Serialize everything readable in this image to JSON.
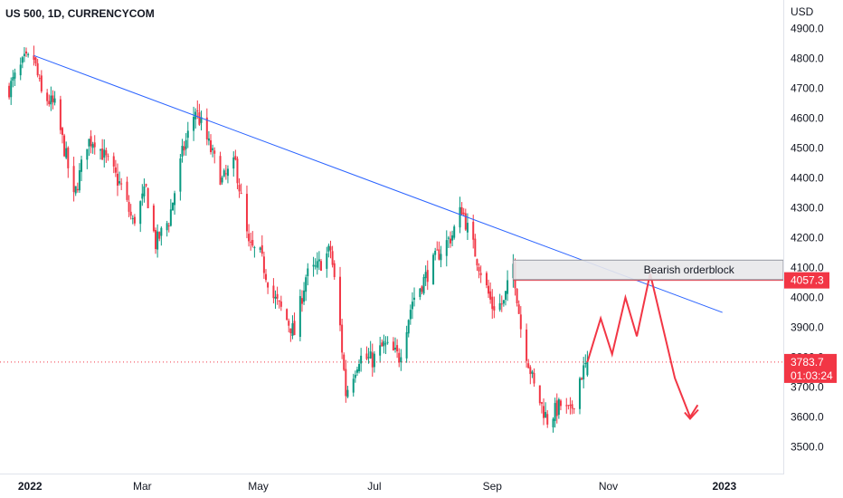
{
  "header": {
    "symbol_title": "US 500, 1D, CURRENCYCOM",
    "currency": "USD"
  },
  "chart_data": {
    "type": "candlestick",
    "title": "US 500, 1D, CURRENCYCOM",
    "y_axis_unit": "USD",
    "ylim": [
      3450,
      4920
    ],
    "y_ticks": [
      "3500.0",
      "3600.0",
      "3700.0",
      "3800.0",
      "3900.0",
      "4000.0",
      "4100.0",
      "4200.0",
      "4300.0",
      "4400.0",
      "4500.0",
      "4600.0",
      "4700.0",
      "4800.0",
      "4900.0"
    ],
    "x_ticks": [
      {
        "label": "2022",
        "bold": true,
        "date": "2022-01-01"
      },
      {
        "label": "Mar",
        "bold": false,
        "date": "2022-03-01"
      },
      {
        "label": "May",
        "bold": false,
        "date": "2022-05-01"
      },
      {
        "label": "Jul",
        "bold": false,
        "date": "2022-07-01"
      },
      {
        "label": "Sep",
        "bold": false,
        "date": "2022-09-01"
      },
      {
        "label": "Nov",
        "bold": false,
        "date": "2022-11-01"
      },
      {
        "label": "2023",
        "bold": true,
        "date": "2023-01-01"
      }
    ],
    "x_range": [
      "2021-12-20",
      "2023-02-01"
    ],
    "price_path": [
      [
        "2021-12-21",
        4700
      ],
      [
        "2021-12-29",
        4790
      ],
      [
        "2022-01-03",
        4800
      ],
      [
        "2022-01-07",
        4680
      ],
      [
        "2022-01-14",
        4640
      ],
      [
        "2022-01-20",
        4470
      ],
      [
        "2022-01-24",
        4330
      ],
      [
        "2022-01-31",
        4520
      ],
      [
        "2022-02-04",
        4530
      ],
      [
        "2022-02-10",
        4460
      ],
      [
        "2022-02-18",
        4370
      ],
      [
        "2022-02-24",
        4250
      ],
      [
        "2022-03-03",
        4360
      ],
      [
        "2022-03-08",
        4180
      ],
      [
        "2022-03-15",
        4260
      ],
      [
        "2022-03-22",
        4480
      ],
      [
        "2022-03-29",
        4630
      ],
      [
        "2022-04-05",
        4510
      ],
      [
        "2022-04-12",
        4390
      ],
      [
        "2022-04-19",
        4450
      ],
      [
        "2022-04-26",
        4170
      ],
      [
        "2022-05-02",
        4140
      ],
      [
        "2022-05-09",
        4000
      ],
      [
        "2022-05-13",
        3960
      ],
      [
        "2022-05-20",
        3880
      ],
      [
        "2022-05-26",
        4070
      ],
      [
        "2022-06-01",
        4100
      ],
      [
        "2022-06-08",
        4160
      ],
      [
        "2022-06-13",
        3900
      ],
      [
        "2022-06-16",
        3680
      ],
      [
        "2022-06-23",
        3800
      ],
      [
        "2022-06-30",
        3790
      ],
      [
        "2022-07-06",
        3840
      ],
      [
        "2022-07-14",
        3800
      ],
      [
        "2022-07-21",
        3990
      ],
      [
        "2022-07-28",
        4070
      ],
      [
        "2022-08-04",
        4150
      ],
      [
        "2022-08-11",
        4210
      ],
      [
        "2022-08-16",
        4300
      ],
      [
        "2022-08-19",
        4230
      ],
      [
        "2022-08-26",
        4090
      ],
      [
        "2022-09-01",
        3970
      ],
      [
        "2022-09-07",
        3980
      ],
      [
        "2022-09-12",
        4110
      ],
      [
        "2022-09-16",
        3900
      ],
      [
        "2022-09-23",
        3700
      ],
      [
        "2022-09-30",
        3590
      ],
      [
        "2022-10-07",
        3640
      ],
      [
        "2022-10-12",
        3610
      ],
      [
        "2022-10-17",
        3730
      ],
      [
        "2022-10-21",
        3783.7
      ]
    ],
    "series": [
      {
        "name": "",
        "type": "trendline",
        "points": [
          [
            "2022-01-03",
            4810
          ],
          [
            "2022-12-31",
            3950
          ]
        ]
      },
      {
        "name": "",
        "type": "projection",
        "points": [
          [
            "2022-10-21",
            3783.7
          ],
          [
            "2022-10-28",
            3930
          ],
          [
            "2022-11-03",
            3810
          ],
          [
            "2022-11-10",
            4000
          ],
          [
            "2022-11-16",
            3870
          ],
          [
            "2022-11-23",
            4080
          ],
          [
            "2022-12-06",
            3730
          ],
          [
            "2022-12-14",
            3600
          ],
          [
            "2022-12-18",
            3640
          ]
        ]
      }
    ],
    "annotations": [
      {
        "type": "rectangle",
        "label": "Bearish orderblock",
        "from": "2022-09-12",
        "to": "2023-02-01",
        "y_top": 4125,
        "y_bottom": 4060
      }
    ],
    "horizontal_lines": [
      {
        "value": 4057.3,
        "label": "4057.3",
        "color": "#f23645",
        "from": "2022-09-12"
      },
      {
        "value": 3783.7,
        "label": "3783.7",
        "color": "#f23645",
        "style": "dotted"
      }
    ],
    "last_price": {
      "value": "3783.7",
      "countdown": "01:03:24"
    },
    "colors": {
      "up": "#089981",
      "down": "#f23645",
      "trendline": "#2962ff",
      "projection": "#f23645",
      "box_fill": "#e8e8ea",
      "box_stroke": "#9598a1"
    },
    "grid": false
  }
}
